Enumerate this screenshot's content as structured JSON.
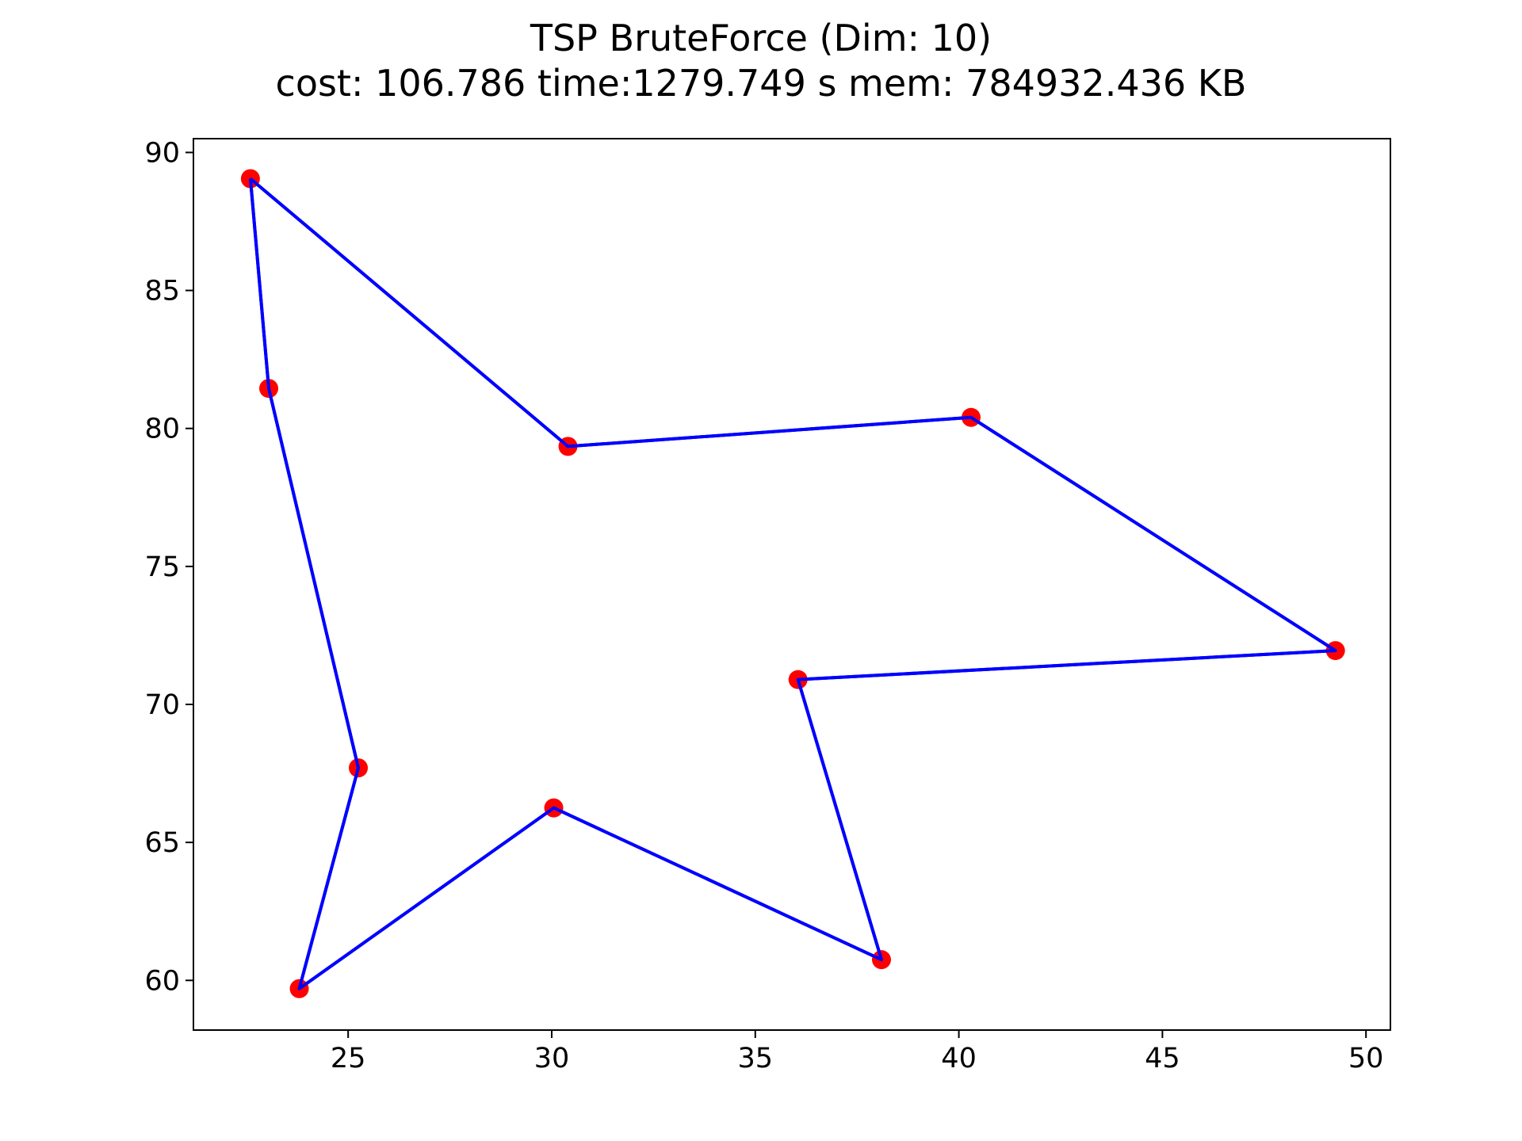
{
  "chart_data": {
    "type": "scatter",
    "title": "TSP BruteForce (Dim: 10)",
    "subtitle": "cost: 106.786   time:1279.749 s   mem: 784932.436 KB",
    "xlabel": "",
    "ylabel": "",
    "xlim": [
      21.2,
      50.6
    ],
    "ylim": [
      58.2,
      90.5
    ],
    "x_ticks": [
      25,
      30,
      35,
      40,
      45,
      50
    ],
    "y_ticks": [
      60,
      65,
      70,
      75,
      80,
      85,
      90
    ],
    "grid": false,
    "legend": "none",
    "points": [
      {
        "x": 22.6,
        "y": 89.05
      },
      {
        "x": 23.05,
        "y": 81.45
      },
      {
        "x": 25.25,
        "y": 67.7
      },
      {
        "x": 23.8,
        "y": 59.7
      },
      {
        "x": 30.05,
        "y": 66.25
      },
      {
        "x": 38.1,
        "y": 60.75
      },
      {
        "x": 36.05,
        "y": 70.9
      },
      {
        "x": 49.25,
        "y": 71.95
      },
      {
        "x": 40.3,
        "y": 80.4
      },
      {
        "x": 30.4,
        "y": 79.35
      }
    ],
    "tour": [
      0,
      1,
      2,
      3,
      4,
      5,
      6,
      7,
      8,
      9,
      0
    ],
    "colors": {
      "points": "#ff0000",
      "path": "#0000ff",
      "axes": "#000000"
    }
  }
}
